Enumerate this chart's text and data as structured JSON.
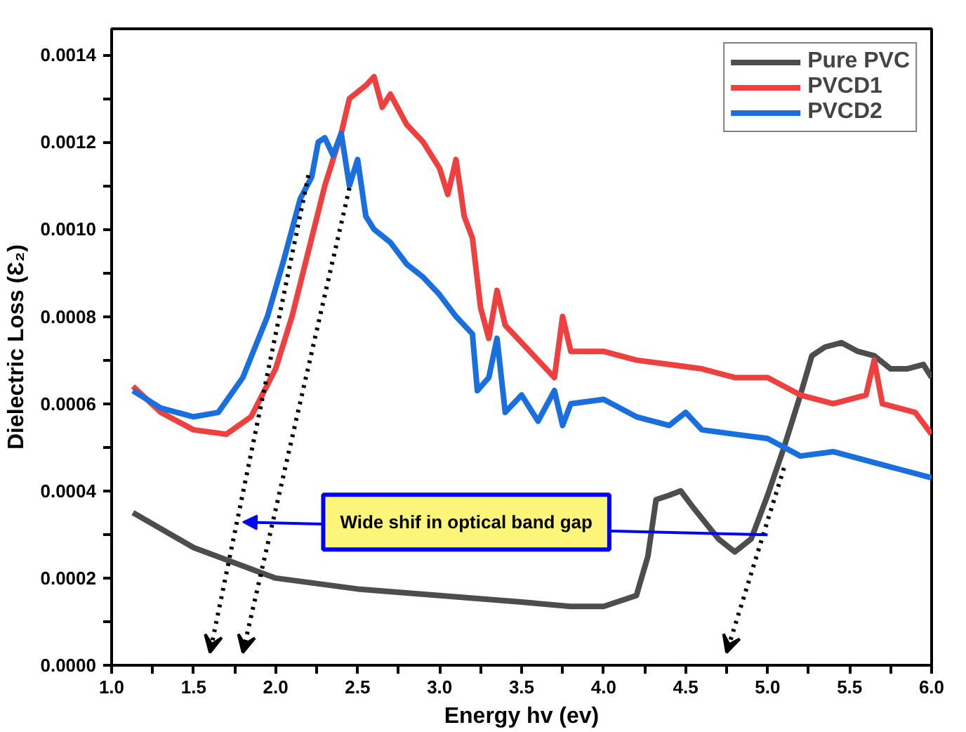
{
  "chart_data": {
    "type": "line",
    "xlabel": "Energy hv (ev)",
    "ylabel": "Dielectric Loss (Ɛ₂)",
    "xlim": [
      1.0,
      6.0
    ],
    "ylim": [
      0,
      0.00146
    ],
    "xticks": [
      {
        "value": 1.0,
        "label": "1.0"
      },
      {
        "value": 1.25,
        "label": null
      },
      {
        "value": 1.5,
        "label": "1.5"
      },
      {
        "value": 1.75,
        "label": null
      },
      {
        "value": 2.0,
        "label": "2.0"
      },
      {
        "value": 2.25,
        "label": null
      },
      {
        "value": 2.5,
        "label": "2.5"
      },
      {
        "value": 2.75,
        "label": null
      },
      {
        "value": 3.0,
        "label": "3.0"
      },
      {
        "value": 3.25,
        "label": null
      },
      {
        "value": 3.5,
        "label": "3.5"
      },
      {
        "value": 3.75,
        "label": null
      },
      {
        "value": 4.0,
        "label": "4.0"
      },
      {
        "value": 4.25,
        "label": null
      },
      {
        "value": 4.5,
        "label": "4.5"
      },
      {
        "value": 4.75,
        "label": null
      },
      {
        "value": 5.0,
        "label": "5.0"
      },
      {
        "value": 5.25,
        "label": null
      },
      {
        "value": 5.5,
        "label": "5.5"
      },
      {
        "value": 5.75,
        "label": null
      },
      {
        "value": 6.0,
        "label": "6.0"
      }
    ],
    "yticks": [
      {
        "value": 0,
        "label": "0.0000"
      },
      {
        "value": 0.0001,
        "label": null
      },
      {
        "value": 0.0002,
        "label": "0.0002"
      },
      {
        "value": 0.0003,
        "label": null
      },
      {
        "value": 0.0004,
        "label": "0.0004"
      },
      {
        "value": 0.0005,
        "label": null
      },
      {
        "value": 0.0006,
        "label": "0.0006"
      },
      {
        "value": 0.0007,
        "label": null
      },
      {
        "value": 0.0008,
        "label": "0.0008"
      },
      {
        "value": 0.0009,
        "label": null
      },
      {
        "value": 0.001,
        "label": "0.0010"
      },
      {
        "value": 0.0011,
        "label": null
      },
      {
        "value": 0.0012,
        "label": "0.0012"
      },
      {
        "value": 0.0013,
        "label": null
      },
      {
        "value": 0.0014,
        "label": "0.0014"
      }
    ],
    "grid": false,
    "legend": "top right",
    "marker": "none",
    "line_style": "solid",
    "series": [
      {
        "name": "Pure PVC",
        "color": "#4d4d4d",
        "x": [
          1.13,
          1.5,
          2.0,
          2.5,
          3.0,
          3.5,
          3.8,
          4.0,
          4.2,
          4.27,
          4.32,
          4.4,
          4.47,
          4.55,
          4.7,
          4.8,
          4.9,
          5.0,
          5.1,
          5.2,
          5.27,
          5.35,
          5.45,
          5.55,
          5.65,
          5.75,
          5.85,
          5.95,
          6.0
        ],
        "values": [
          0.00035,
          0.00027,
          0.0002,
          0.000175,
          0.00016,
          0.000145,
          0.000135,
          0.000135,
          0.00016,
          0.00025,
          0.00038,
          0.00039,
          0.0004,
          0.00036,
          0.00029,
          0.00026,
          0.00029,
          0.00039,
          0.0005,
          0.00062,
          0.00071,
          0.00073,
          0.00074,
          0.00072,
          0.00071,
          0.00068,
          0.00068,
          0.00069,
          0.00066
        ]
      },
      {
        "name": "PVCD1",
        "color": "#ef4040",
        "x": [
          1.13,
          1.3,
          1.5,
          1.7,
          1.85,
          2.0,
          2.1,
          2.2,
          2.3,
          2.4,
          2.45,
          2.55,
          2.6,
          2.65,
          2.7,
          2.8,
          2.9,
          3.0,
          3.05,
          3.1,
          3.15,
          3.2,
          3.25,
          3.3,
          3.35,
          3.4,
          3.5,
          3.6,
          3.7,
          3.75,
          3.8,
          4.0,
          4.2,
          4.4,
          4.6,
          4.8,
          5.0,
          5.2,
          5.4,
          5.6,
          5.65,
          5.7,
          5.8,
          5.9,
          6.0
        ],
        "values": [
          0.00064,
          0.00058,
          0.00054,
          0.00053,
          0.00057,
          0.00068,
          0.0008,
          0.00095,
          0.0011,
          0.00122,
          0.0013,
          0.00133,
          0.00135,
          0.00128,
          0.00131,
          0.00124,
          0.0012,
          0.00114,
          0.00108,
          0.00116,
          0.00103,
          0.00098,
          0.00082,
          0.00075,
          0.00086,
          0.00078,
          0.00074,
          0.0007,
          0.00066,
          0.0008,
          0.00072,
          0.00072,
          0.0007,
          0.00069,
          0.00068,
          0.00066,
          0.00066,
          0.00062,
          0.0006,
          0.00062,
          0.0007,
          0.0006,
          0.00059,
          0.00058,
          0.00053
        ]
      },
      {
        "name": "PVCD2",
        "color": "#1a6fdf",
        "x": [
          1.13,
          1.3,
          1.5,
          1.65,
          1.8,
          1.95,
          2.05,
          2.15,
          2.22,
          2.26,
          2.3,
          2.35,
          2.4,
          2.45,
          2.5,
          2.55,
          2.6,
          2.7,
          2.8,
          2.9,
          3.0,
          3.1,
          3.2,
          3.23,
          3.3,
          3.35,
          3.4,
          3.5,
          3.6,
          3.7,
          3.75,
          3.8,
          4.0,
          4.2,
          4.4,
          4.5,
          4.6,
          4.8,
          5.0,
          5.2,
          5.4,
          5.6,
          5.8,
          6.0
        ],
        "values": [
          0.00063,
          0.00059,
          0.00057,
          0.00058,
          0.00066,
          0.0008,
          0.00093,
          0.00107,
          0.00112,
          0.0012,
          0.00121,
          0.00117,
          0.00122,
          0.0011,
          0.00116,
          0.00103,
          0.001,
          0.00097,
          0.00092,
          0.00089,
          0.00085,
          0.0008,
          0.00076,
          0.00063,
          0.00066,
          0.00075,
          0.00058,
          0.00062,
          0.00056,
          0.00063,
          0.00055,
          0.0006,
          0.00061,
          0.00057,
          0.00055,
          0.00058,
          0.00054,
          0.00053,
          0.00052,
          0.00048,
          0.00049,
          0.00047,
          0.00045,
          0.00043
        ]
      }
    ],
    "annotations": [
      "Wide shif in optical band gap"
    ]
  }
}
